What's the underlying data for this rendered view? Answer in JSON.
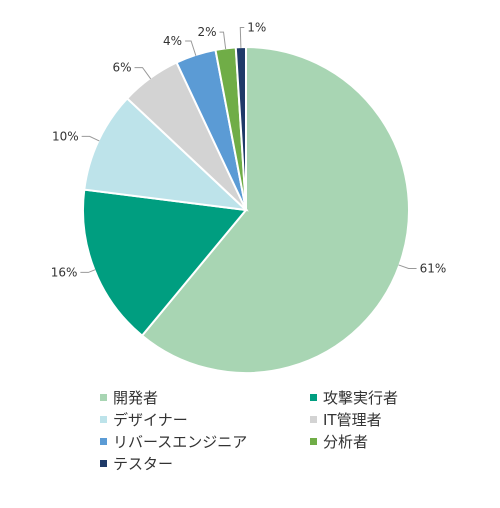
{
  "chart_data": {
    "type": "pie",
    "title": "",
    "start": "12 o'clock",
    "direction": "clockwise",
    "legend_position": "bottom",
    "slices": [
      {
        "label": "開発者",
        "value": 61,
        "value_label": "61%",
        "color": "#a8d5b3"
      },
      {
        "label": "攻撃実行者",
        "value": 16,
        "value_label": "16%",
        "color": "#009e80"
      },
      {
        "label": "デザイナー",
        "value": 10,
        "value_label": "10%",
        "color": "#bde3ea"
      },
      {
        "label": "IT管理者",
        "value": 6,
        "value_label": "6%",
        "color": "#d3d3d3"
      },
      {
        "label": "リバースエンジニア",
        "value": 4,
        "value_label": "4%",
        "color": "#5b9bd5"
      },
      {
        "label": "分析者",
        "value": 2,
        "value_label": "2%",
        "color": "#70ad47"
      },
      {
        "label": "テスター",
        "value": 1,
        "value_label": "1%",
        "color": "#1f3a68"
      }
    ]
  }
}
